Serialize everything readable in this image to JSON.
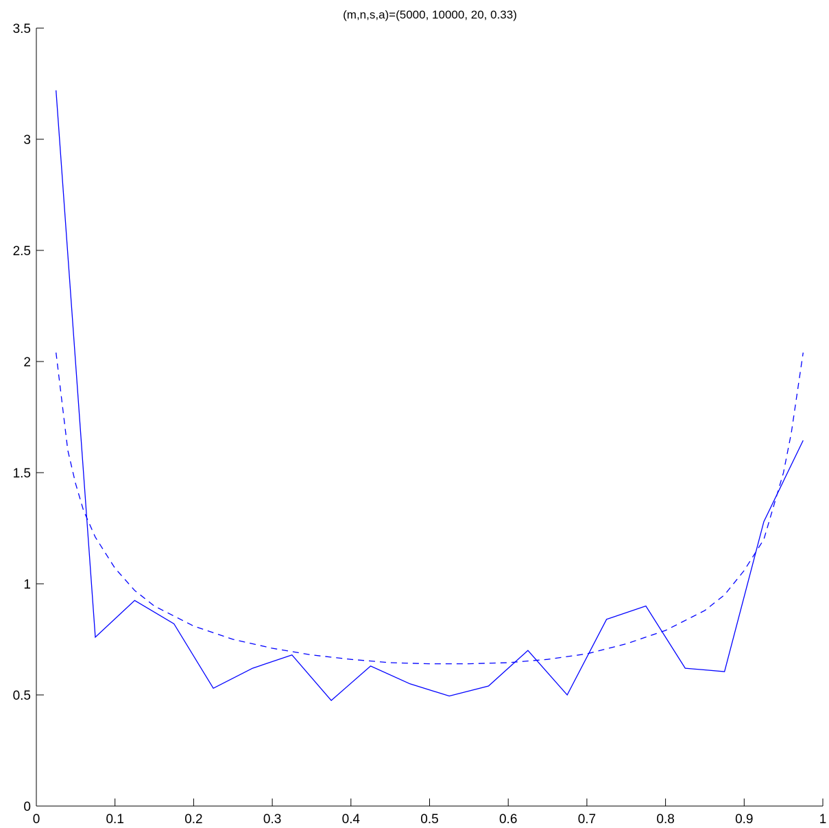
{
  "chart_data": {
    "type": "line",
    "title": "(m,n,s,a)=(5000, 10000, 20, 0.33)",
    "xlabel": "",
    "ylabel": "",
    "xlim": [
      0,
      1
    ],
    "ylim": [
      0,
      3.5
    ],
    "xticks": [
      0,
      0.1,
      0.2,
      0.3,
      0.4,
      0.5,
      0.6,
      0.7,
      0.8,
      0.9,
      1
    ],
    "xtick_labels": [
      "0",
      "0.1",
      "0.2",
      "0.3",
      "0.4",
      "0.5",
      "0.6",
      "0.7",
      "0.8",
      "0.9",
      "1"
    ],
    "yticks": [
      0,
      0.5,
      1,
      1.5,
      2,
      2.5,
      3,
      3.5
    ],
    "ytick_labels": [
      "0",
      "0.5",
      "1",
      "1.5",
      "2",
      "2.5",
      "3",
      "3.5"
    ],
    "grid": false,
    "color": "#0000ff",
    "series": [
      {
        "style": "solid",
        "x": [
          0.025,
          0.075,
          0.125,
          0.175,
          0.225,
          0.275,
          0.325,
          0.375,
          0.425,
          0.475,
          0.525,
          0.575,
          0.625,
          0.675,
          0.725,
          0.775,
          0.825,
          0.875,
          0.925,
          0.975
        ],
        "y": [
          3.22,
          0.76,
          0.925,
          0.82,
          0.53,
          0.62,
          0.68,
          0.475,
          0.63,
          0.55,
          0.495,
          0.54,
          0.7,
          0.5,
          0.84,
          0.9,
          0.62,
          0.605,
          1.28,
          1.645
        ]
      },
      {
        "style": "dashed",
        "x": [
          0.025,
          0.04,
          0.05,
          0.06,
          0.075,
          0.1,
          0.125,
          0.15,
          0.2,
          0.25,
          0.3,
          0.35,
          0.4,
          0.45,
          0.5,
          0.55,
          0.6,
          0.65,
          0.7,
          0.75,
          0.8,
          0.85,
          0.875,
          0.9,
          0.925,
          0.95,
          0.96,
          0.975
        ],
        "y": [
          2.04,
          1.6,
          1.45,
          1.33,
          1.21,
          1.07,
          0.97,
          0.9,
          0.81,
          0.75,
          0.71,
          0.68,
          0.66,
          0.645,
          0.64,
          0.64,
          0.645,
          0.66,
          0.685,
          0.73,
          0.79,
          0.88,
          0.95,
          1.06,
          1.2,
          1.5,
          1.68,
          2.04
        ]
      }
    ]
  }
}
